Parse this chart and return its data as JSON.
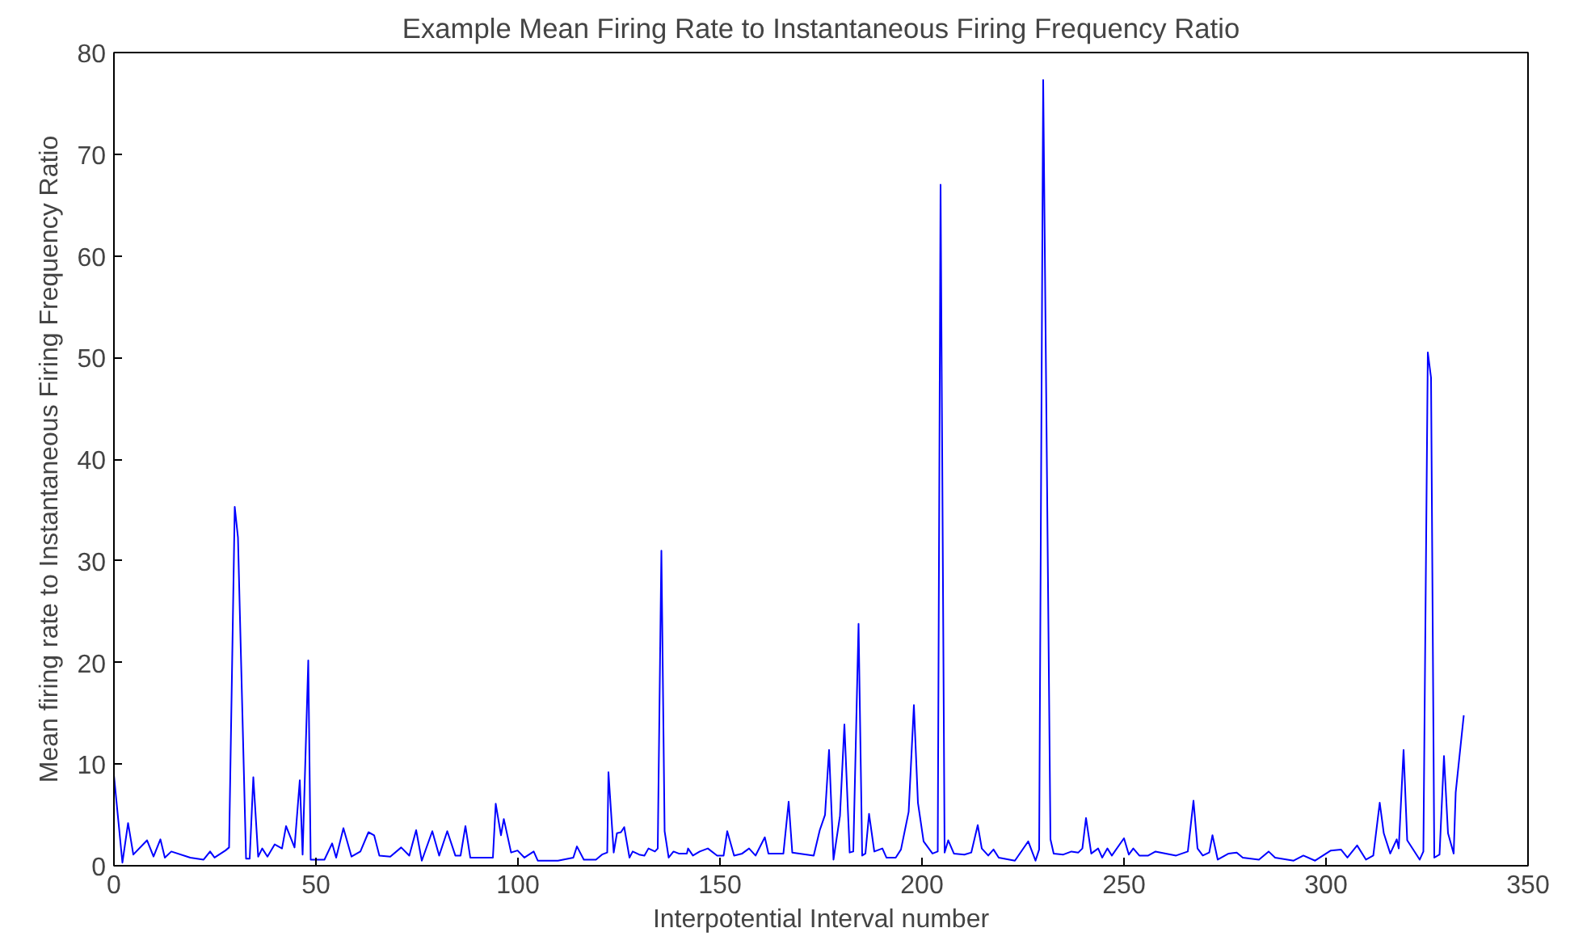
{
  "chart_data": {
    "type": "line",
    "title": "Example Mean Firing Rate to Instantaneous Firing Frequency Ratio",
    "xlabel": "Interpotential Interval number",
    "ylabel": "Mean firing rate to Instantaneous Firing Frequency Ratio",
    "xlim": [
      0,
      350
    ],
    "ylim": [
      0,
      80
    ],
    "xticks": [
      0,
      50,
      100,
      150,
      200,
      250,
      300,
      350
    ],
    "yticks": [
      0,
      10,
      20,
      30,
      40,
      50,
      60,
      70,
      80
    ],
    "grid": false,
    "marker": "none",
    "line_style": "solid",
    "series": [
      {
        "color": "#0000ff",
        "x": [
          0,
          2.1,
          3.5,
          4.8,
          8.2,
          9.8,
          11.5,
          12.6,
          14.2,
          18.9,
          22.2,
          23.8,
          24.9,
          27.6,
          28.5,
          29.9,
          30.7,
          32.7,
          33.6,
          34.5,
          35.7,
          36.7,
          38,
          39.8,
          41.6,
          42.6,
          44.7,
          46,
          46.7,
          48.1,
          48.7,
          52.1,
          54,
          55,
          56.8,
          58.8,
          61,
          63,
          64.4,
          65.7,
          68.4,
          71.1,
          73.1,
          74.8,
          76.2,
          78.8,
          80.5,
          82.5,
          84.5,
          85.8,
          87,
          88.2,
          93.8,
          94.5,
          95.8,
          96.5,
          98.3,
          99.9,
          101.6,
          103.9,
          104.9,
          109.9,
          113.7,
          114.6,
          116.3,
          119.3,
          120.8,
          122.1,
          122.4,
          123.7,
          124.5,
          125.5,
          126.3,
          127.6,
          128.4,
          130,
          131.3,
          132.3,
          133.9,
          134.6,
          135.5,
          136.3,
          137.3,
          138.5,
          139.8,
          141.8,
          142.1,
          143.3,
          145,
          147,
          149.3,
          150.9,
          151.8,
          153.5,
          155.5,
          157.2,
          158.8,
          161.1,
          162,
          165.7,
          167,
          167.9,
          173.2,
          174.7,
          176,
          177,
          178.1,
          179.7,
          180.8,
          182.1,
          183,
          184.3,
          185.2,
          186,
          186.9,
          188.2,
          190.2,
          191.2,
          193.5,
          194.8,
          196.7,
          198,
          199,
          200.4,
          202.6,
          203.9,
          204.6,
          205.6,
          206.5,
          207.9,
          210.5,
          212.2,
          213.8,
          214.8,
          216.4,
          217.7,
          219,
          223,
          226.3,
          228.1,
          229,
          230,
          231.8,
          232.6,
          235,
          237,
          238.7,
          239.7,
          240.6,
          241.9,
          243.6,
          244.6,
          245.9,
          247,
          250,
          251.2,
          252.3,
          253.8,
          256,
          257.8,
          262.9,
          265.8,
          267.2,
          268.2,
          269.5,
          271.1,
          271.9,
          273.2,
          275.9,
          277.9,
          279.4,
          283.4,
          285.8,
          287.4,
          292,
          294.4,
          297.3,
          301.2,
          303.7,
          305.3,
          307.7,
          309.9,
          311.7,
          313.3,
          314.3,
          315.9,
          317.5,
          318,
          319.2,
          320.1,
          323.2,
          324.1,
          325.2,
          326,
          326.8,
          328.1,
          329.2,
          330.2,
          331.6,
          332.1,
          334.1
        ],
        "values": [
          8.9,
          0.3,
          4.2,
          1.1,
          2.5,
          0.9,
          2.6,
          0.8,
          1.4,
          0.8,
          0.6,
          1.4,
          0.8,
          1.5,
          1.8,
          35.3,
          32.3,
          0.7,
          0.7,
          8.7,
          0.9,
          1.7,
          0.9,
          2.1,
          1.7,
          3.9,
          1.8,
          8.4,
          1.1,
          20.2,
          0.6,
          0.6,
          2.2,
          0.8,
          3.7,
          0.9,
          1.4,
          3.3,
          3,
          1,
          0.9,
          1.8,
          1,
          3.5,
          0.5,
          3.4,
          1,
          3.4,
          1,
          1,
          3.9,
          0.8,
          0.8,
          6.1,
          3,
          4.6,
          1.3,
          1.5,
          0.8,
          1.4,
          0.5,
          0.5,
          0.8,
          1.9,
          0.6,
          0.6,
          1.1,
          1.3,
          9.2,
          1.3,
          3.2,
          3.3,
          3.8,
          0.8,
          1.4,
          1.1,
          1,
          1.7,
          1.4,
          1.7,
          31,
          3.4,
          0.8,
          1.4,
          1.2,
          1.2,
          1.7,
          1,
          1.4,
          1.7,
          1,
          1,
          3.4,
          1,
          1.2,
          1.7,
          1,
          2.8,
          1.2,
          1.2,
          6.3,
          1.3,
          1,
          3.5,
          5,
          11.4,
          0.6,
          4.9,
          13.9,
          1.3,
          1.4,
          23.8,
          1,
          1.2,
          5.1,
          1.4,
          1.7,
          0.8,
          0.8,
          1.6,
          5.3,
          15.8,
          6.2,
          2.4,
          1.2,
          1.4,
          67,
          1.3,
          2.5,
          1.2,
          1.1,
          1.3,
          4,
          1.7,
          1,
          1.6,
          0.8,
          0.5,
          2.4,
          0.5,
          1.6,
          77.3,
          2.6,
          1.2,
          1.1,
          1.4,
          1.3,
          1.7,
          4.7,
          1.2,
          1.7,
          0.8,
          1.7,
          1,
          2.7,
          1.1,
          1.7,
          1,
          1,
          1.4,
          1,
          1.4,
          6.4,
          1.7,
          1,
          1.3,
          3,
          0.6,
          1.2,
          1.3,
          0.8,
          0.6,
          1.4,
          0.8,
          0.5,
          1,
          0.5,
          1.5,
          1.6,
          0.8,
          2,
          0.6,
          1,
          6.2,
          3.2,
          1.2,
          2.6,
          1.7,
          11.4,
          2.5,
          0.6,
          1.4,
          50.5,
          48,
          0.8,
          1.1,
          10.8,
          3.2,
          1.2,
          7.2,
          14.8
        ]
      }
    ]
  }
}
